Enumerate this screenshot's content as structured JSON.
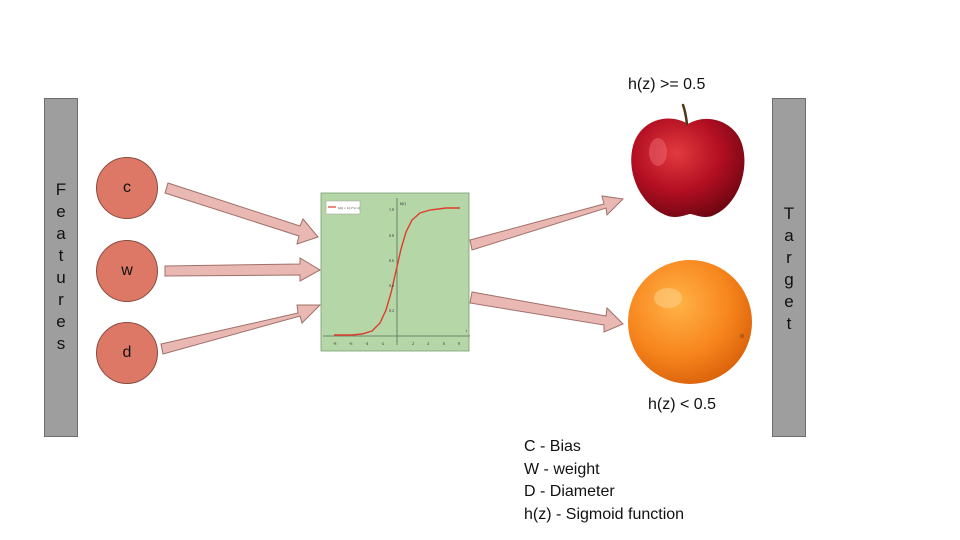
{
  "features_bar": {
    "letters": [
      "F",
      "e",
      "a",
      "t",
      "u",
      "r",
      "e",
      "s"
    ]
  },
  "target_bar": {
    "letters": [
      "T",
      "a",
      "r",
      "g",
      "e",
      "t"
    ]
  },
  "nodes": [
    {
      "label": "c"
    },
    {
      "label": "w"
    },
    {
      "label": "d"
    }
  ],
  "sigmoid_plot": {
    "y_ticks": [
      "1.0",
      "0.8",
      "0.6",
      "0.4",
      "0.2"
    ],
    "x_ticks": [
      "-8",
      "-6",
      "-4",
      "-2",
      "2",
      "4",
      "6",
      "8"
    ],
    "y_axis_label": "h(t)",
    "x_axis_label": "t",
    "legend_text": "h(t) = 1/(1+e^-t)",
    "colors": {
      "background": "#b5d7a8",
      "curve": "#e03b2c"
    }
  },
  "outcomes": {
    "top_label": "h(z) >= 0.5",
    "bottom_label": "h(z) < 0.5",
    "top_image": "apple-image",
    "bottom_image": "orange-image"
  },
  "legend": [
    "C - Bias",
    "W - weight",
    "D - Diameter",
    "h(z) - Sigmoid function"
  ],
  "colors": {
    "arrow_fill": "#eab8b2",
    "arrow_stroke": "#a0706a",
    "node_fill": "#dd7866",
    "bar_fill": "#9e9e9e"
  }
}
